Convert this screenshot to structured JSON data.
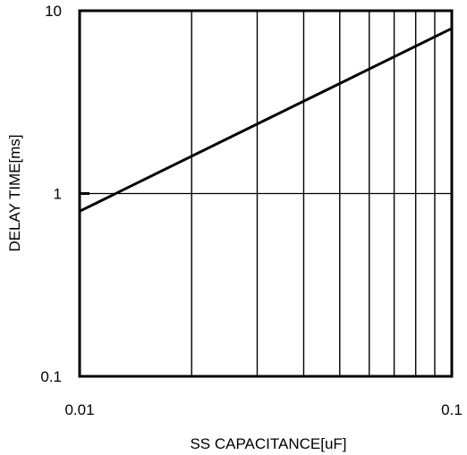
{
  "chart_data": {
    "type": "line",
    "title": "",
    "xlabel": "SS CAPACITANCE[uF]",
    "ylabel": "DELAY TIME[ms]",
    "x_scale": "log",
    "y_scale": "log",
    "xlim": [
      0.01,
      0.1
    ],
    "ylim": [
      0.1,
      10
    ],
    "x_ticks": [
      {
        "value": 0.01,
        "label": "0.01"
      },
      {
        "value": 0.1,
        "label": "0.1"
      }
    ],
    "y_ticks": [
      {
        "value": 10,
        "label": "10"
      },
      {
        "value": 1,
        "label": "1"
      },
      {
        "value": 0.1,
        "label": "0.1"
      }
    ],
    "x_gridlines": [
      0.02,
      0.03,
      0.04,
      0.05,
      0.06,
      0.07,
      0.08,
      0.09
    ],
    "y_gridlines": [
      1
    ],
    "grid": true,
    "legend": "none",
    "series": [
      {
        "x": [
          0.01,
          0.1
        ],
        "y": [
          0.8,
          8
        ]
      }
    ],
    "colors": {
      "line": "#000000",
      "grid": "#000000",
      "frame": "#000000",
      "background": "#ffffff"
    }
  }
}
